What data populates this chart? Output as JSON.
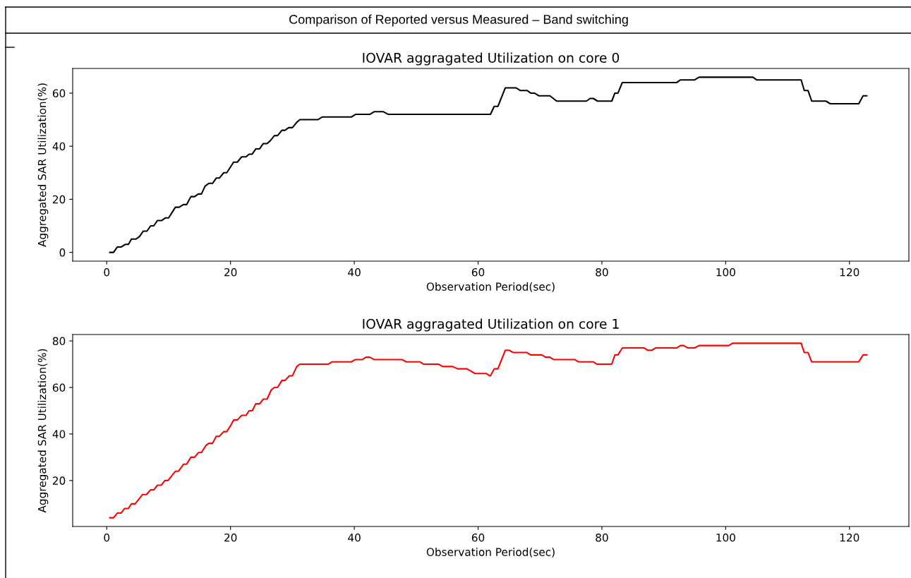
{
  "chart_data": [
    {
      "type": "line",
      "title": "IOVAR aggragated Utilization on core 0",
      "xlabel": "Observation Period(sec)",
      "ylabel": "Aggregated SAR Utilization(%)",
      "annotations": [
        "Comparison of Reported versus Measured – Band switching"
      ],
      "xlim": [
        -5.5,
        129.6
      ],
      "xticks": [
        0,
        20,
        40,
        60,
        80,
        100,
        120
      ],
      "ylim": [
        -3.3,
        69.3
      ],
      "yticks": [
        0,
        20,
        40,
        60
      ],
      "grid": false,
      "marker": "none",
      "line_style": "solid",
      "series": [
        {
          "color": "#000000",
          "x": [
            0.5,
            1.1,
            1.7,
            2.3,
            3.0,
            3.5,
            4.0,
            4.7,
            5.3,
            5.9,
            6.5,
            7.1,
            7.6,
            8.2,
            8.9,
            9.5,
            10.0,
            11.1,
            11.7,
            12.4,
            12.9,
            13.6,
            14.2,
            14.8,
            15.3,
            15.9,
            16.5,
            17.1,
            17.7,
            18.2,
            18.9,
            19.4,
            20.5,
            21.1,
            21.8,
            22.5,
            23.0,
            23.5,
            24.1,
            24.7,
            25.3,
            25.9,
            26.4,
            27.1,
            27.6,
            28.3,
            28.8,
            29.4,
            30.0,
            30.7,
            31.2,
            34.1,
            34.8,
            39.5,
            40.2,
            42.5,
            43.2,
            44.7,
            45.5,
            62.0,
            62.6,
            63.2,
            64.4,
            66.1,
            66.8,
            67.9,
            68.5,
            69.1,
            69.8,
            71.6,
            72.7,
            77.5,
            78.1,
            78.6,
            79.3,
            81.6,
            82.1,
            82.6,
            83.3,
            92.1,
            92.7,
            95.0,
            95.7,
            104.4,
            105.0,
            112.2,
            112.7,
            113.3,
            113.9,
            116.2,
            116.9,
            121.5,
            122.2,
            122.8
          ],
          "values": [
            0,
            0,
            2,
            2,
            3,
            3,
            5,
            5,
            6,
            8,
            8,
            10,
            10,
            12,
            12,
            13,
            13,
            17,
            17,
            18,
            18,
            21,
            21,
            22,
            22,
            25,
            26,
            26,
            28,
            28,
            30,
            30,
            34,
            34,
            36,
            36,
            37,
            37,
            39,
            39,
            41,
            41,
            42,
            44,
            44,
            46,
            46,
            47,
            47,
            49,
            50,
            50,
            51,
            51,
            52,
            52,
            53,
            53,
            52,
            52,
            55,
            55,
            62,
            62,
            61,
            61,
            60,
            60,
            59,
            59,
            57,
            57,
            58,
            58,
            57,
            57,
            60,
            60,
            64,
            64,
            65,
            65,
            66,
            66,
            65,
            65,
            61,
            61,
            57,
            57,
            56,
            56,
            59,
            59
          ]
        }
      ]
    },
    {
      "type": "line",
      "title": "IOVAR aggragated Utilization on core 1",
      "xlabel": "Observation Period(sec)",
      "ylabel": "Aggregated SAR Utilization(%)",
      "xlim": [
        -5.5,
        129.6
      ],
      "xticks": [
        0,
        20,
        40,
        60,
        80,
        100,
        120
      ],
      "ylim": [
        0.25,
        82.75
      ],
      "yticks": [
        20,
        40,
        60,
        80
      ],
      "grid": false,
      "marker": "none",
      "line_style": "solid",
      "series": [
        {
          "color": "#ff0000",
          "x": [
            0.5,
            1.1,
            1.7,
            2.3,
            2.9,
            3.5,
            4.0,
            4.6,
            5.8,
            6.4,
            7.1,
            7.6,
            8.2,
            8.8,
            9.4,
            9.9,
            11.1,
            11.6,
            12.4,
            12.9,
            13.6,
            14.2,
            14.8,
            15.3,
            16.0,
            16.5,
            17.1,
            17.7,
            18.2,
            18.9,
            19.4,
            20.1,
            20.5,
            21.1,
            21.8,
            22.5,
            23.0,
            23.5,
            24.1,
            24.7,
            25.3,
            25.9,
            26.6,
            27.1,
            27.6,
            28.3,
            28.8,
            29.5,
            30.0,
            30.7,
            31.2,
            35.8,
            36.4,
            39.5,
            40.2,
            41.3,
            41.9,
            42.5,
            43.2,
            47.7,
            48.4,
            50.6,
            51.2,
            53.6,
            54.3,
            55.9,
            56.7,
            58.2,
            59.5,
            61.3,
            61.9,
            62.0,
            62.6,
            63.2,
            64.4,
            65.0,
            65.7,
            67.9,
            68.5,
            70.3,
            70.9,
            71.6,
            72.2,
            75.6,
            76.2,
            78.6,
            79.2,
            81.6,
            82.1,
            82.6,
            83.3,
            86.8,
            87.4,
            88.1,
            88.7,
            92.1,
            92.7,
            93.2,
            93.9,
            95.0,
            95.7,
            100.5,
            101.1,
            112.2,
            112.7,
            113.3,
            113.9,
            121.5,
            122.2,
            122.8
          ],
          "values": [
            4,
            4,
            6,
            6,
            8,
            8,
            10,
            10,
            14,
            14,
            16,
            16,
            18,
            18,
            20,
            20,
            24,
            24,
            27,
            27,
            30,
            30,
            32,
            32,
            35,
            36,
            36,
            39,
            39,
            41,
            41,
            44,
            46,
            46,
            48,
            48,
            50,
            50,
            53,
            53,
            55,
            55,
            59,
            60,
            60,
            63,
            63,
            65,
            65,
            69,
            70,
            70,
            71,
            71,
            72,
            72,
            73,
            73,
            72,
            72,
            71,
            71,
            70,
            70,
            69,
            69,
            68,
            68,
            66,
            66,
            65,
            65,
            68,
            68,
            76,
            76,
            75,
            75,
            74,
            74,
            73,
            73,
            72,
            72,
            71,
            71,
            70,
            70,
            74,
            74,
            77,
            77,
            76,
            76,
            77,
            77,
            78,
            78,
            77,
            77,
            78,
            78,
            79,
            79,
            75,
            75,
            71,
            71,
            74,
            74
          ]
        }
      ]
    }
  ]
}
